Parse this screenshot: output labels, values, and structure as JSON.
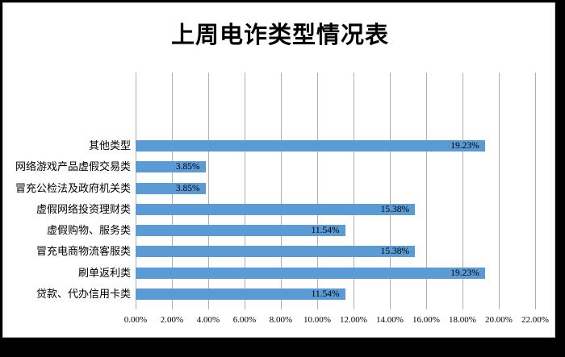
{
  "frame": {
    "background_color": "#000000",
    "card_background": "#ffffff",
    "card_border_color": "#c9c9c9"
  },
  "chart_data": {
    "type": "bar",
    "orientation": "horizontal",
    "title": "上周电诈类型情况表",
    "categories": [
      "其他类型",
      "网络游戏产品虚假交易类",
      "冒充公检法及政府机关类",
      "虚假网络投资理财类",
      "虚假购物、服务类",
      "冒充电商物流客服类",
      "刷单返利类",
      "贷款、代办信用卡类"
    ],
    "values": [
      19.23,
      3.85,
      3.85,
      15.38,
      11.54,
      15.38,
      19.23,
      11.54
    ],
    "value_labels": [
      "19.23%",
      "3.85%",
      "3.85%",
      "15.38%",
      "11.54%",
      "15.38%",
      "19.23%",
      "11.54%"
    ],
    "value_label_position": "inside-end",
    "x_ticks": [
      "0.00%",
      "2.00%",
      "4.00%",
      "6.00%",
      "8.00%",
      "10.00%",
      "12.00%",
      "14.00%",
      "16.00%",
      "18.00%",
      "20.00%",
      "22.00%"
    ],
    "xlim": [
      0,
      22
    ],
    "xlabel": "",
    "ylabel": "",
    "grid": "vertical-only",
    "legend": "none",
    "bar_color": "#5b9bd5",
    "gridline_color": "#b0b0b0",
    "text_color": "#000000"
  }
}
